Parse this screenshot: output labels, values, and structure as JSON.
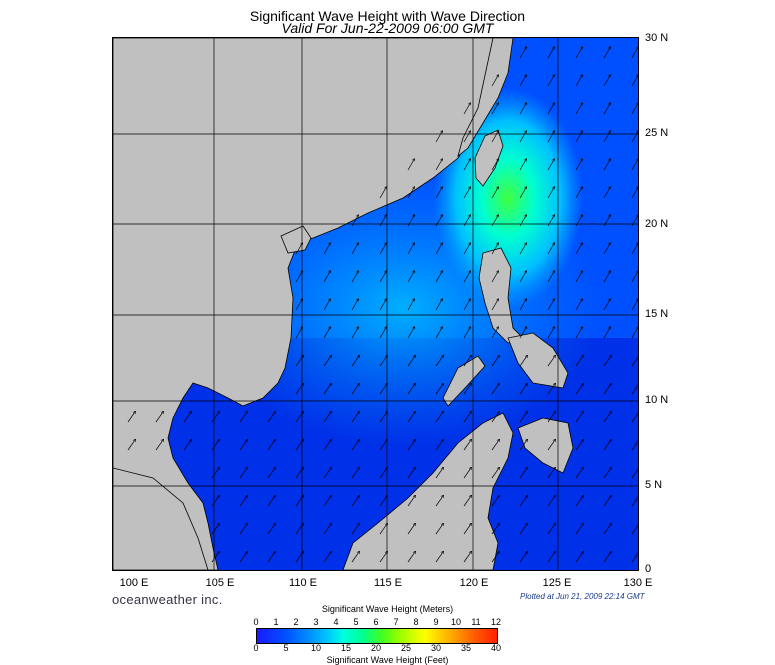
{
  "title": "Significant Wave Height with Wave Direction",
  "subtitle": "Valid For Jun-22-2009 06:00 GMT",
  "map": {
    "lon_labels": [
      "100 E",
      "105 E",
      "110 E",
      "115 E",
      "120 E",
      "125 E",
      "130 E"
    ],
    "lat_labels": [
      "30 N",
      "25 N",
      "20 N",
      "15 N",
      "10 N",
      "5 N",
      "0"
    ],
    "lon_range": [
      99,
      130
    ],
    "lat_range": [
      0,
      30
    ],
    "grid": true,
    "land_color": "#c0c0c0",
    "arrow_direction": "north-east"
  },
  "brand": "oceanweather inc.",
  "plotted": "Plotted at Jun 21, 2009 22:14 GMT",
  "colorbar": {
    "title_meters": "Significant Wave Height (Meters)",
    "title_feet": "Significant Wave Height (Feet)",
    "meter_ticks": [
      "0",
      "1",
      "2",
      "3",
      "4",
      "5",
      "6",
      "7",
      "8",
      "9",
      "10",
      "11",
      "12"
    ],
    "feet_ticks": [
      "0",
      "5",
      "10",
      "15",
      "20",
      "25",
      "30",
      "35",
      "40"
    ]
  }
}
